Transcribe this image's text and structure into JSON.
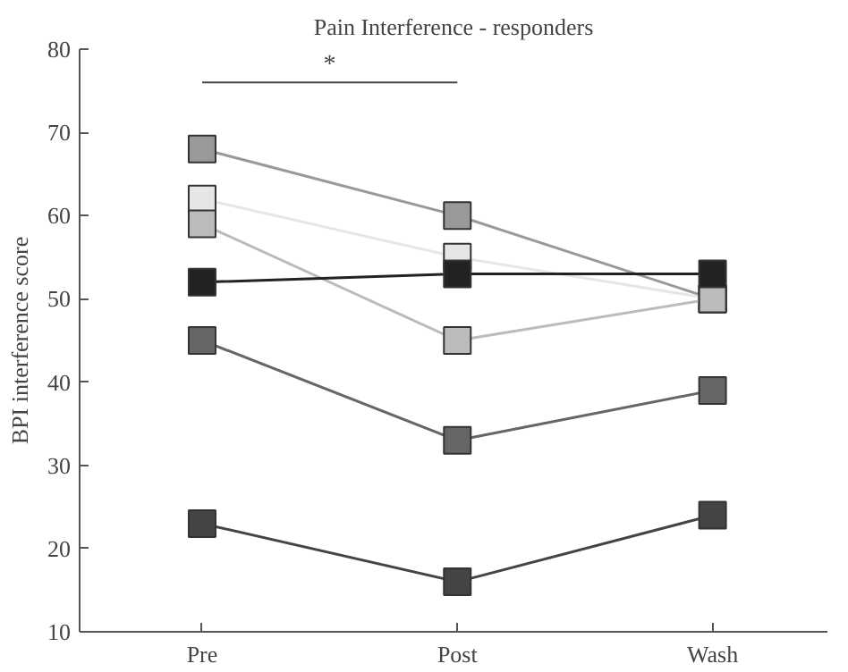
{
  "chart_data": {
    "type": "line",
    "title": "Pain Interference - responders",
    "ylabel": "BPI interference score",
    "categories": [
      "Pre",
      "Post",
      "Wash"
    ],
    "series": [
      {
        "color": "#999999",
        "values": [
          68,
          60,
          50
        ]
      },
      {
        "color": "#e6e6e6",
        "values": [
          62,
          55,
          50
        ]
      },
      {
        "color": "#bbbbbb",
        "values": [
          59,
          45,
          50
        ]
      },
      {
        "color": "#222222",
        "values": [
          52,
          53,
          53
        ]
      },
      {
        "color": "#666666",
        "values": [
          45,
          33,
          39
        ]
      },
      {
        "color": "#444444",
        "values": [
          23,
          16,
          24
        ]
      }
    ],
    "ylim": [
      10,
      80
    ],
    "yticks": [
      10,
      20,
      30,
      40,
      50,
      60,
      70,
      80
    ],
    "grid": false,
    "marker": "square",
    "line_style": "solid",
    "annotations": [
      "*"
    ]
  }
}
